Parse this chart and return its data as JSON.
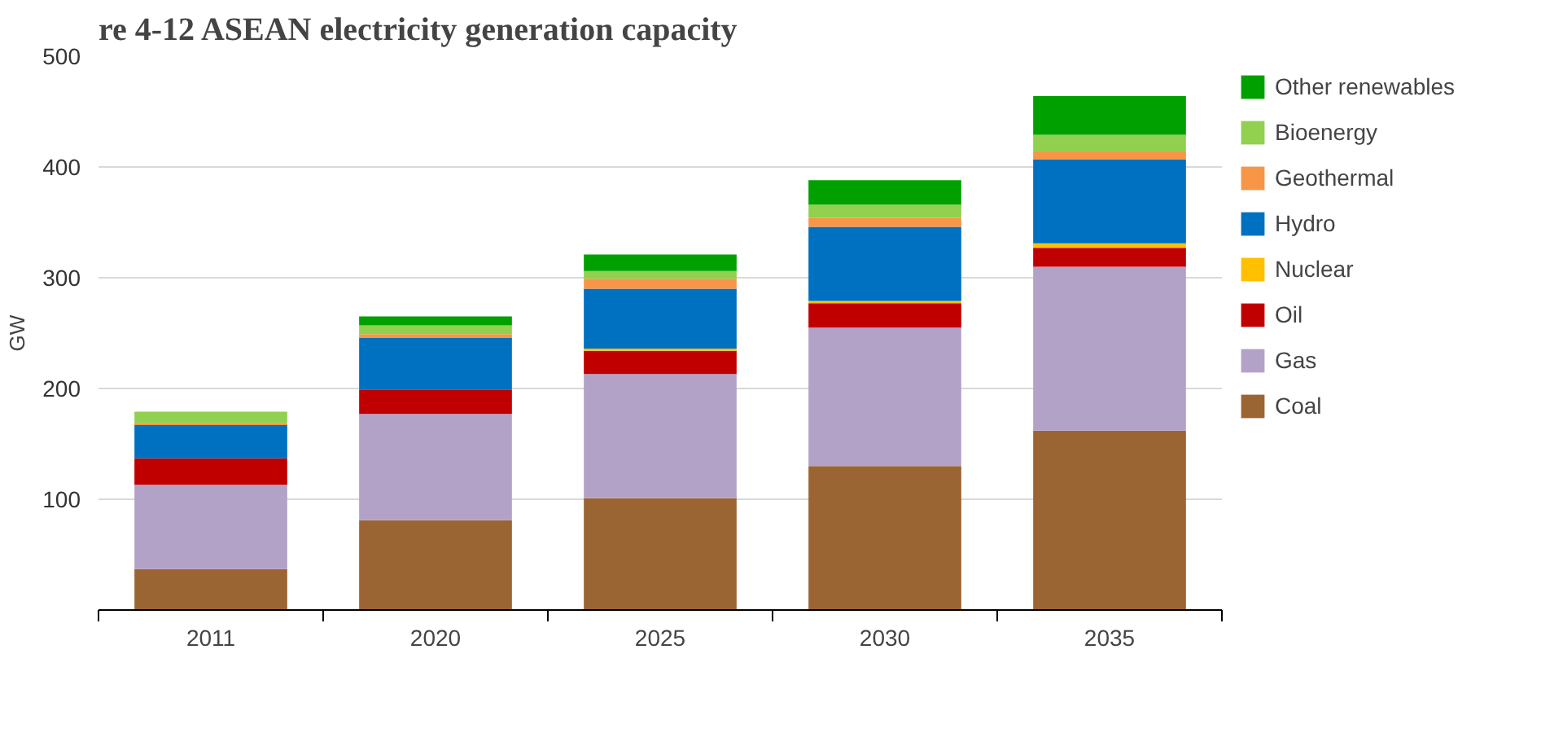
{
  "chart_data": {
    "type": "bar",
    "stacked": true,
    "title": "re 4-12 ASEAN electricity generation capacity",
    "ylabel": "GW",
    "categories": [
      "2011",
      "2020",
      "2025",
      "2030",
      "2035"
    ],
    "series": [
      {
        "name": "Coal",
        "color": "#9b6533",
        "values": [
          37,
          81,
          101,
          130,
          162
        ]
      },
      {
        "name": "Gas",
        "color": "#b3a2c8",
        "values": [
          76,
          96,
          112,
          125,
          148
        ]
      },
      {
        "name": "Oil",
        "color": "#c00000",
        "values": [
          24,
          22,
          21,
          22,
          17
        ]
      },
      {
        "name": "Nuclear",
        "color": "#ffc000",
        "values": [
          0,
          0,
          2,
          2,
          4
        ]
      },
      {
        "name": "Hydro",
        "color": "#0070c0",
        "values": [
          30,
          47,
          54,
          67,
          76
        ]
      },
      {
        "name": "Geothermal",
        "color": "#f79646",
        "values": [
          2,
          3,
          9,
          8,
          7
        ]
      },
      {
        "name": "Bioenergy",
        "color": "#92d050",
        "values": [
          10,
          8,
          7,
          12,
          15
        ]
      },
      {
        "name": "Other renewables",
        "color": "#00a000",
        "values": [
          0,
          8,
          15,
          22,
          35
        ]
      }
    ],
    "ylim": [
      0,
      500
    ],
    "yticks": [
      100,
      200,
      300,
      400,
      500
    ],
    "grid": "y",
    "legend": "right"
  }
}
